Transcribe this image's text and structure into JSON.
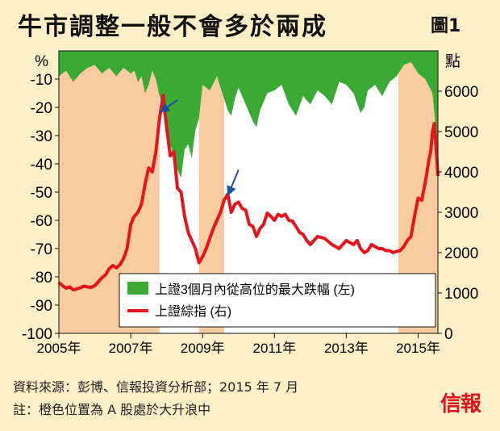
{
  "title": "牛市調整一般不會多於兩成",
  "figure_label": "圖1",
  "source": "資料來源：彭博、信報投資分析部；2015 年 7 月",
  "note": "註：橙色位置為 A 股處於大升浪中",
  "logo_text": "信報",
  "colors": {
    "background": "#fdf0c8",
    "plot_bg": "#ffffff",
    "bull_shade": "#f9cba0",
    "drawdown": "#3aaa35",
    "index_line": "#e2161d",
    "arrow": "#1a4f9c"
  },
  "chart_data": {
    "type": "area+line",
    "x_ticks": [
      "2005年",
      "2007年",
      "2009年",
      "2011年",
      "2013年",
      "2015年"
    ],
    "x_tick_years": [
      2005,
      2007,
      2009,
      2011,
      2013,
      2015
    ],
    "xlim": [
      2005.0,
      2015.55
    ],
    "left_axis": {
      "unit": "%",
      "lim": [
        -100,
        0
      ],
      "ticks": [
        -10,
        -20,
        -30,
        -40,
        -50,
        -60,
        -70,
        -80,
        -90,
        -100
      ]
    },
    "right_axis": {
      "unit": "點",
      "lim": [
        0,
        7000
      ],
      "ticks": [
        0,
        1000,
        2000,
        3000,
        4000,
        5000,
        6000
      ]
    },
    "legend": [
      "上證3個月內從高位的最大跌幅 (左)",
      "上證綜指 (右)"
    ],
    "legend_position": "bottom-right",
    "bull_periods": [
      [
        2005.0,
        2007.8
      ],
      [
        2008.9,
        2009.6
      ],
      [
        2014.45,
        2015.55
      ]
    ],
    "arrows": [
      {
        "at": [
          2007.85,
          5500
        ],
        "from": [
          2008.3,
          5780
        ]
      },
      {
        "at": [
          2009.72,
          3450
        ],
        "from": [
          2010.0,
          4050
        ]
      }
    ],
    "series": [
      {
        "name": "上證3個月內從高位的最大跌幅 (左)",
        "axis": "left",
        "x": [
          2005.0,
          2005.2,
          2005.4,
          2005.6,
          2005.8,
          2006.0,
          2006.2,
          2006.4,
          2006.6,
          2006.8,
          2007.0,
          2007.1,
          2007.2,
          2007.3,
          2007.4,
          2007.5,
          2007.6,
          2007.7,
          2007.8,
          2007.9,
          2008.0,
          2008.1,
          2008.2,
          2008.3,
          2008.4,
          2008.5,
          2008.6,
          2008.7,
          2008.8,
          2008.9,
          2009.0,
          2009.2,
          2009.4,
          2009.6,
          2009.7,
          2009.8,
          2009.9,
          2010.0,
          2010.2,
          2010.4,
          2010.5,
          2010.6,
          2010.8,
          2011.0,
          2011.2,
          2011.4,
          2011.6,
          2011.8,
          2012.0,
          2012.2,
          2012.4,
          2012.6,
          2012.8,
          2013.0,
          2013.2,
          2013.4,
          2013.5,
          2013.6,
          2013.8,
          2014.0,
          2014.2,
          2014.4,
          2014.6,
          2014.8,
          2015.0,
          2015.2,
          2015.4,
          2015.55
        ],
        "values": [
          -9,
          -7,
          -11,
          -8,
          -6,
          -5,
          -8,
          -6,
          -9,
          -6,
          -8,
          -7,
          -11,
          -9,
          -15,
          -12,
          -7,
          -10,
          -16,
          -20,
          -25,
          -33,
          -38,
          -42,
          -45,
          -35,
          -33,
          -38,
          -28,
          -24,
          -12,
          -14,
          -9,
          -17,
          -21,
          -23,
          -17,
          -13,
          -19,
          -25,
          -27,
          -21,
          -15,
          -14,
          -12,
          -19,
          -23,
          -16,
          -19,
          -14,
          -16,
          -19,
          -11,
          -12,
          -15,
          -22,
          -20,
          -14,
          -12,
          -16,
          -11,
          -9,
          -5,
          -4,
          -8,
          -10,
          -15,
          -35
        ]
      },
      {
        "name": "上證綜指 (右)",
        "axis": "right",
        "x": [
          2005.0,
          2005.1,
          2005.2,
          2005.3,
          2005.4,
          2005.5,
          2005.6,
          2005.7,
          2005.8,
          2005.9,
          2006.0,
          2006.1,
          2006.2,
          2006.3,
          2006.4,
          2006.5,
          2006.6,
          2006.7,
          2006.8,
          2006.9,
          2007.0,
          2007.1,
          2007.2,
          2007.3,
          2007.4,
          2007.5,
          2007.6,
          2007.7,
          2007.8,
          2007.9,
          2008.0,
          2008.1,
          2008.2,
          2008.3,
          2008.4,
          2008.5,
          2008.6,
          2008.7,
          2008.8,
          2008.9,
          2009.0,
          2009.1,
          2009.2,
          2009.3,
          2009.4,
          2009.5,
          2009.6,
          2009.7,
          2009.8,
          2009.9,
          2010.0,
          2010.1,
          2010.2,
          2010.3,
          2010.4,
          2010.5,
          2010.6,
          2010.7,
          2010.8,
          2010.9,
          2011.0,
          2011.1,
          2011.2,
          2011.3,
          2011.4,
          2011.5,
          2011.6,
          2011.7,
          2011.8,
          2011.9,
          2012.0,
          2012.2,
          2012.4,
          2012.6,
          2012.8,
          2013.0,
          2013.1,
          2013.2,
          2013.3,
          2013.4,
          2013.5,
          2013.6,
          2013.7,
          2013.8,
          2013.9,
          2014.0,
          2014.1,
          2014.2,
          2014.3,
          2014.4,
          2014.5,
          2014.6,
          2014.7,
          2014.8,
          2014.9,
          2015.0,
          2015.1,
          2015.2,
          2015.3,
          2015.35,
          2015.4,
          2015.45,
          2015.5,
          2015.55
        ],
        "values": [
          1260,
          1180,
          1120,
          1150,
          1080,
          1100,
          1130,
          1170,
          1150,
          1140,
          1180,
          1280,
          1380,
          1450,
          1600,
          1680,
          1620,
          1700,
          1850,
          2100,
          2700,
          2900,
          3000,
          3200,
          3700,
          4100,
          4000,
          4500,
          5300,
          5900,
          5100,
          4400,
          4500,
          3600,
          3500,
          2900,
          2500,
          2300,
          2100,
          1750,
          1900,
          2100,
          2350,
          2600,
          2800,
          3000,
          3300,
          3450,
          3000,
          3200,
          3250,
          3100,
          3050,
          2700,
          2650,
          2400,
          2600,
          2700,
          2980,
          2900,
          2800,
          2950,
          2900,
          2950,
          2800,
          2780,
          2650,
          2500,
          2450,
          2300,
          2200,
          2400,
          2350,
          2200,
          2100,
          2300,
          2250,
          2200,
          2300,
          2100,
          2000,
          2050,
          2200,
          2150,
          2100,
          2100,
          2050,
          2050,
          2000,
          2030,
          2050,
          2150,
          2300,
          2400,
          2900,
          3350,
          3300,
          3750,
          4300,
          4500,
          5000,
          5200,
          4600,
          3900
        ]
      }
    ]
  }
}
